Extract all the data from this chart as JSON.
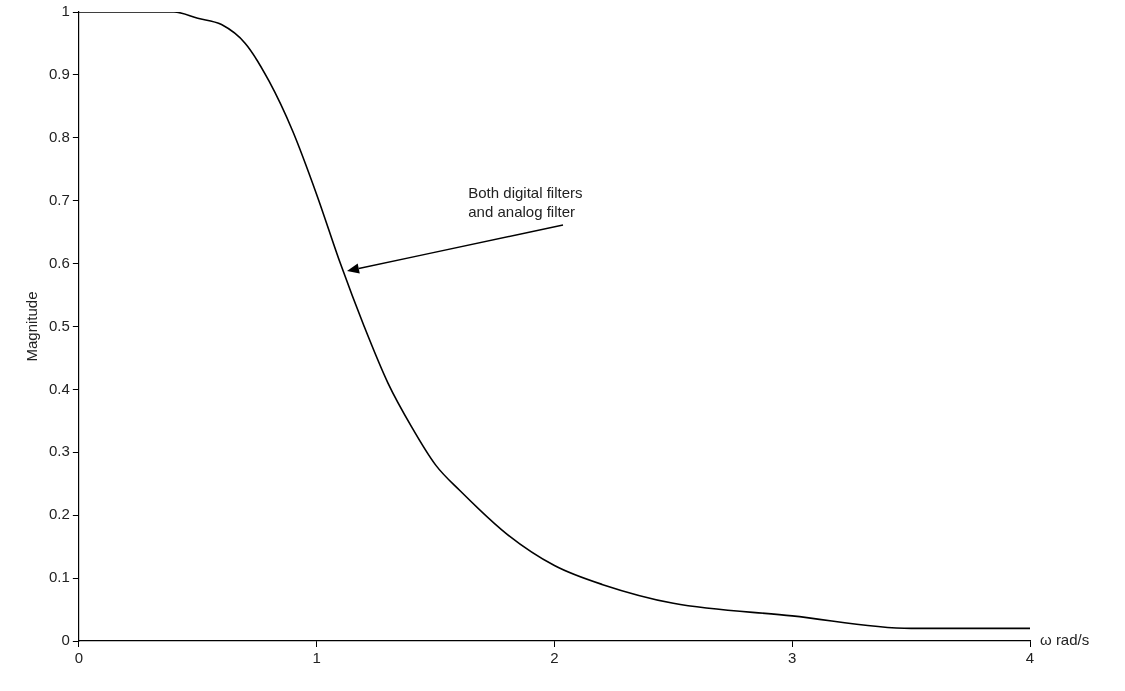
{
  "chart_data": {
    "type": "line",
    "xlabel": "ω rad/s",
    "ylabel": "Magnitude",
    "x": [
      0,
      0.2,
      0.4,
      0.5,
      0.6,
      0.7,
      0.8,
      0.9,
      1.0,
      1.1,
      1.2,
      1.3,
      1.4,
      1.5,
      1.6,
      1.8,
      2.0,
      2.2,
      2.5,
      3.0,
      3.5,
      4.0
    ],
    "series": [
      {
        "color": "#000000",
        "values": [
          1,
          1,
          1,
          0.99,
          0.98,
          0.95,
          0.89,
          0.81,
          0.71,
          0.6,
          0.5,
          0.41,
          0.34,
          0.28,
          0.24,
          0.17,
          0.12,
          0.09,
          0.06,
          0.04,
          0.02,
          0.02
        ]
      }
    ],
    "xlim": [
      0,
      4
    ],
    "xticks": [
      0,
      1,
      2,
      3,
      4
    ],
    "ylim": [
      0,
      1
    ],
    "yticks": [
      0,
      0.1,
      0.2,
      0.3,
      0.4,
      0.5,
      0.6,
      0.7,
      0.8,
      0.9,
      1
    ],
    "annotations": [
      "Both digital filters\nand analog filter"
    ],
    "legend": false,
    "marker": "none",
    "line_style": "solid"
  }
}
